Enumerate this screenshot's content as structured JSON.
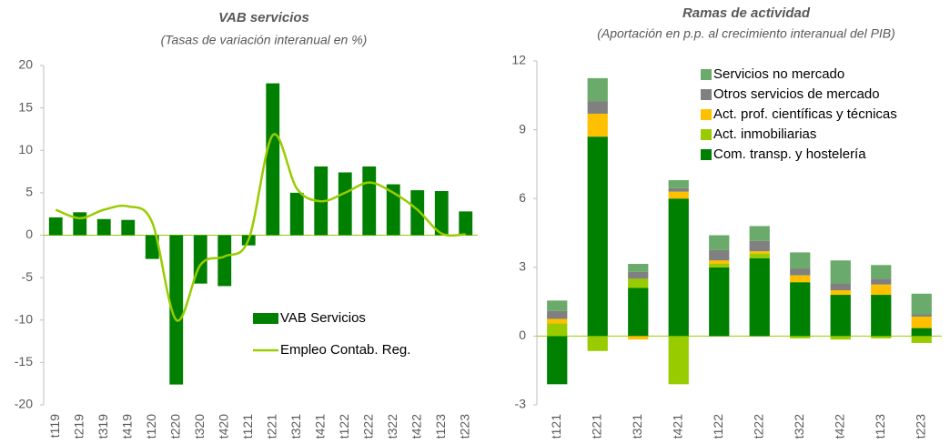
{
  "chart_data": [
    {
      "type": "bar_line",
      "title": "VAB servicios",
      "subtitle": "(Tasas de variación interanual en %)",
      "categories": [
        "t119",
        "t219",
        "t319",
        "t419",
        "t120",
        "t220",
        "t320",
        "t420",
        "t121",
        "t221",
        "t321",
        "t421",
        "t122",
        "t222",
        "t322",
        "t422",
        "t123",
        "t223"
      ],
      "series": [
        {
          "name": "VAB Servicios",
          "type": "bar",
          "color": "#008000",
          "values": [
            2.1,
            2.7,
            1.9,
            1.8,
            -2.8,
            -17.6,
            -5.7,
            -6.0,
            -1.2,
            17.9,
            5.0,
            8.1,
            7.4,
            8.1,
            6.0,
            5.3,
            5.2,
            2.8
          ]
        },
        {
          "name": "Empleo Contab. Reg.",
          "type": "line",
          "color": "#99cc00",
          "values": [
            3.0,
            2.0,
            3.0,
            3.4,
            1.5,
            -10.0,
            -3.5,
            -2.5,
            -0.5,
            11.8,
            5.5,
            4.0,
            5.0,
            6.2,
            5.0,
            3.0,
            0.2,
            0.1
          ]
        }
      ],
      "ylim": [
        -20,
        20
      ],
      "yticks": [
        -20,
        -15,
        -10,
        -5,
        0,
        5,
        10,
        15,
        20
      ],
      "legend": "lower center"
    },
    {
      "type": "stacked_bar",
      "title": "Ramas de actividad",
      "subtitle": "(Aportación en p.p. al crecimiento interanual del PIB)",
      "categories": [
        "t121",
        "t221",
        "t321",
        "t421",
        "t122",
        "t222",
        "t322",
        "t422",
        "t123",
        "t223"
      ],
      "series": [
        {
          "name": "Com. transp. y hostelería",
          "color": "#008000",
          "values": [
            -2.1,
            8.7,
            2.1,
            6.0,
            3.0,
            3.4,
            2.35,
            1.8,
            1.8,
            0.35
          ]
        },
        {
          "name": "Act. inmobiliarias",
          "color": "#99cc00",
          "values": [
            0.55,
            -0.65,
            0.4,
            -2.1,
            0.15,
            0.2,
            -0.1,
            -0.15,
            -0.1,
            -0.3
          ]
        },
        {
          "name": "Act. prof. científicas y técnicas",
          "color": "#ffc000",
          "values": [
            0.2,
            1.0,
            -0.15,
            0.3,
            0.15,
            0.1,
            0.3,
            0.2,
            0.45,
            0.5
          ]
        },
        {
          "name": "Otros servicios de mercado",
          "color": "#808080",
          "values": [
            0.35,
            0.55,
            0.3,
            0.15,
            0.45,
            0.45,
            0.3,
            0.3,
            0.25,
            0.1
          ]
        },
        {
          "name": "Servicios no mercado",
          "color": "#6aaa6a",
          "values": [
            0.45,
            1.0,
            0.35,
            0.35,
            0.65,
            0.65,
            0.7,
            1.0,
            0.6,
            0.9
          ]
        }
      ],
      "ylim": [
        -3,
        12
      ],
      "yticks": [
        -3,
        0,
        3,
        6,
        9,
        12
      ],
      "legend": "upper right"
    }
  ]
}
